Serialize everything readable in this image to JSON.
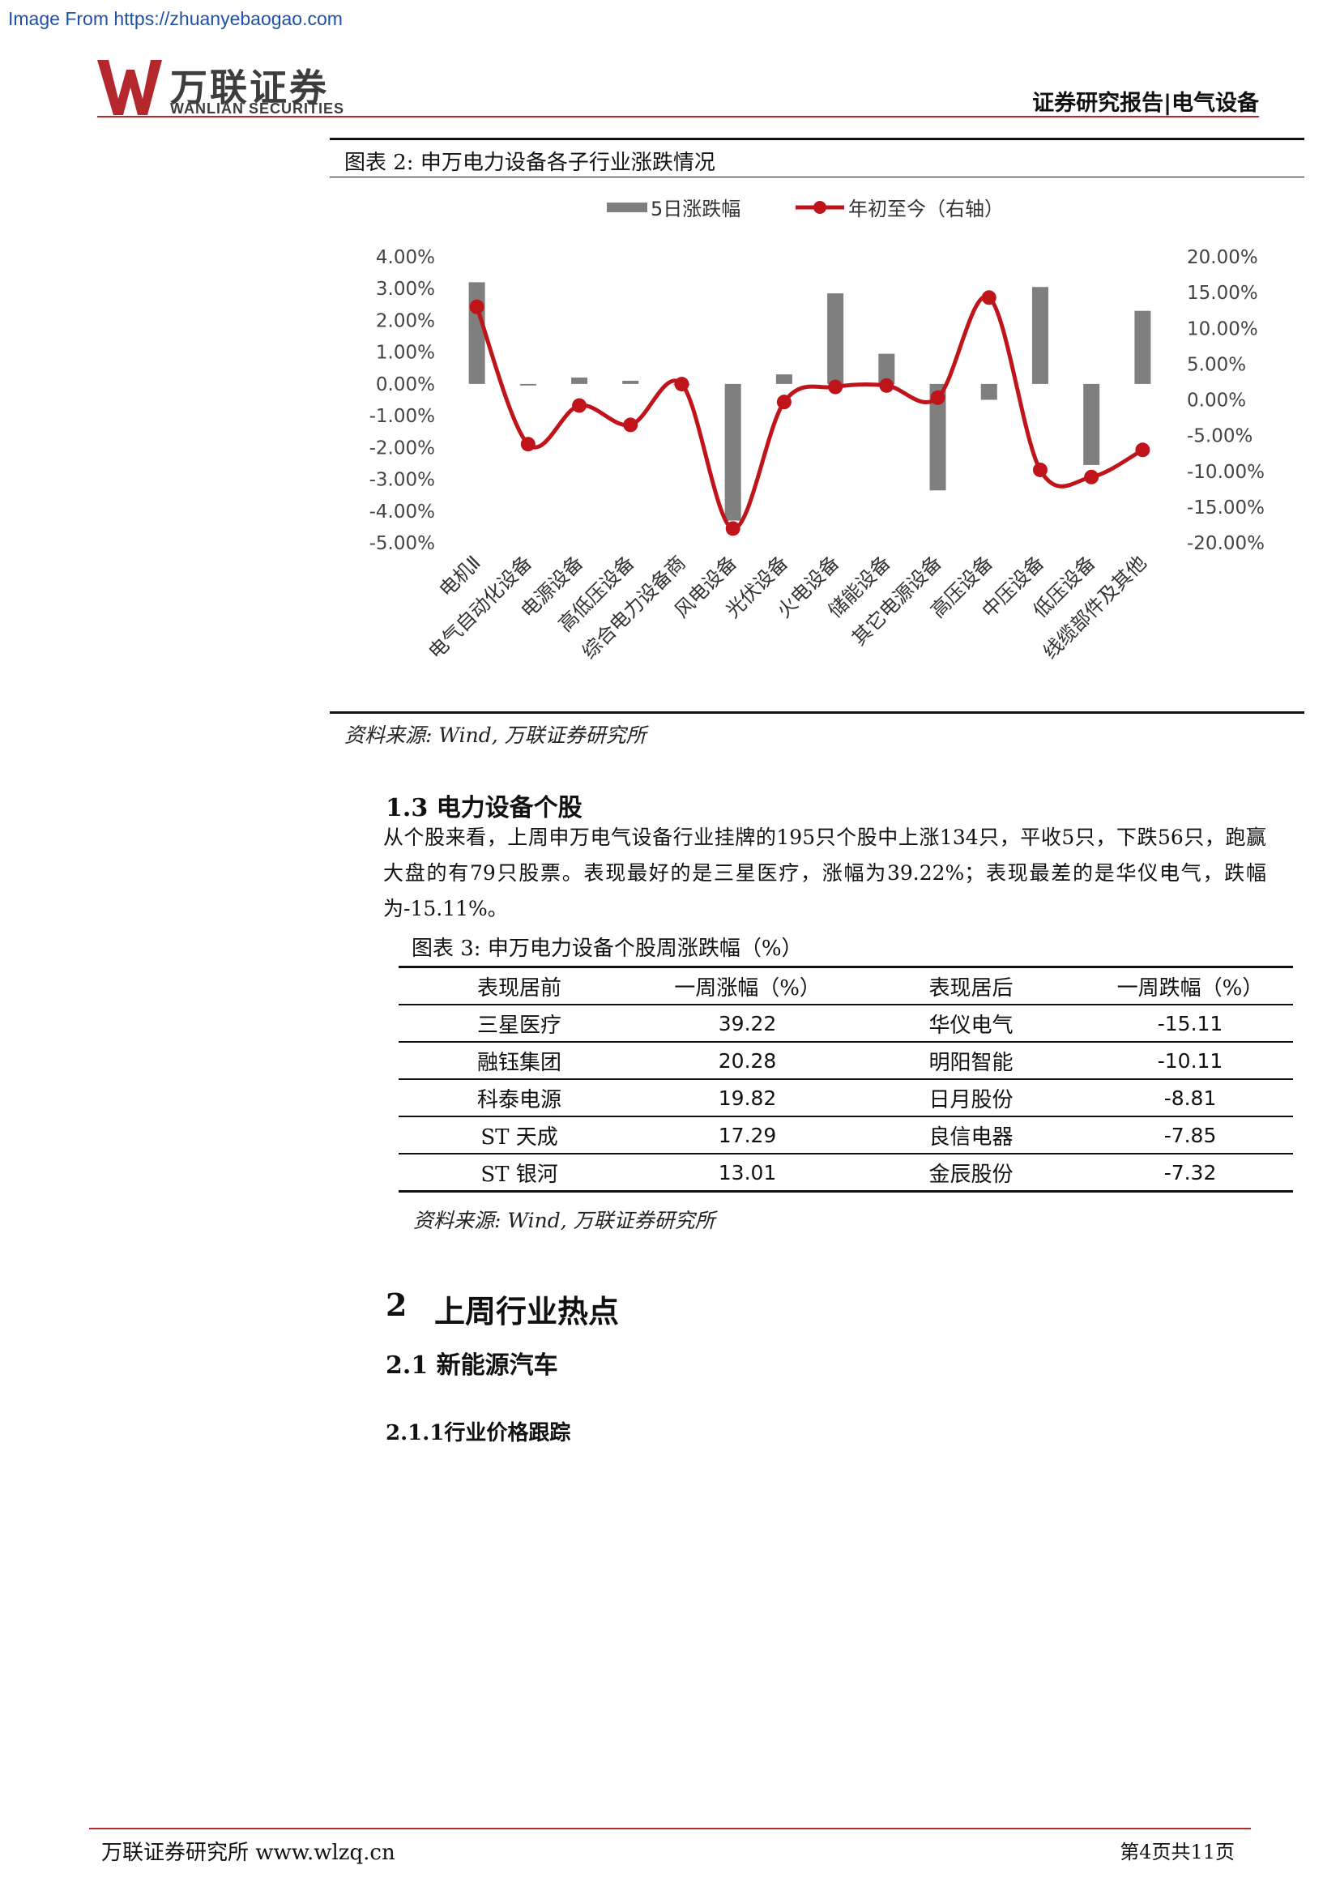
{
  "source_url": "Image From https://zhuanyebaogao.com",
  "header": {
    "logo_cn": "万联证券",
    "logo_en": "WANLIAN SECURITIES",
    "report_type": "证券研究报告|电气设备",
    "brand_color": "#b3272d"
  },
  "figure2": {
    "title": "图表 2:  申万电力设备各子行业涨跌情况",
    "source": "资料来源: Wind, 万联证券研究所"
  },
  "chart_data": {
    "type": "bar",
    "categories": [
      "电机Ⅱ",
      "电气自动化设备",
      "电源设备",
      "高低压设备",
      "综合电力设备商",
      "风电设备",
      "光伏设备",
      "火电设备",
      "储能设备",
      "其它电源设备",
      "高压设备",
      "中压设备",
      "低压设备",
      "线缆部件及其他"
    ],
    "series": [
      {
        "name": "5日涨跌幅",
        "type": "bar",
        "axis": "left",
        "color": "#7f7f7f",
        "values": [
          3.2,
          -0.05,
          0.2,
          0.1,
          0.0,
          -4.3,
          0.3,
          2.85,
          0.95,
          -3.35,
          -0.5,
          3.05,
          -2.55,
          2.3
        ]
      },
      {
        "name": "年初至今（右轴）",
        "type": "line",
        "axis": "right",
        "color": "#c0141b",
        "values": [
          13.0,
          -6.2,
          -0.8,
          -3.5,
          2.2,
          -18.0,
          -0.3,
          1.8,
          2.0,
          0.3,
          14.3,
          -9.8,
          -10.8,
          -7.0
        ]
      }
    ],
    "y_left": {
      "min": -5,
      "max": 4,
      "step": 1,
      "tick_labels": [
        "4.00%",
        "3.00%",
        "2.00%",
        "1.00%",
        "0.00%",
        "-1.00%",
        "-2.00%",
        "-3.00%",
        "-4.00%",
        "-5.00%"
      ]
    },
    "y_right": {
      "min": -20,
      "max": 20,
      "step": 5,
      "tick_labels": [
        "20.00%",
        "15.00%",
        "10.00%",
        "5.00%",
        "0.00%",
        "-5.00%",
        "-10.00%",
        "-15.00%",
        "-20.00%"
      ]
    },
    "legend_position": "top",
    "grid": false
  },
  "section_1_3": {
    "heading": "1.3 电力设备个股",
    "paragraph": "从个股来看，上周申万电气设备行业挂牌的195只个股中上涨134只，平收5只，下跌56只，跑赢大盘的有79只股票。表现最好的是三星医疗，涨幅为39.22%；表现最差的是华仪电气，跌幅为-15.11%。"
  },
  "table3": {
    "title": "图表 3:  申万电力设备个股周涨跌幅（%）",
    "headers": [
      "表现居前",
      "一周涨幅（%）",
      "表现居后",
      "一周跌幅（%）"
    ],
    "rows": [
      [
        "三星医疗",
        "39.22",
        "华仪电气",
        "-15.11"
      ],
      [
        "融钰集团",
        "20.28",
        "明阳智能",
        "-10.11"
      ],
      [
        "科泰电源",
        "19.82",
        "日月股份",
        "-8.81"
      ],
      [
        "ST 天成",
        "17.29",
        "良信电器",
        "-7.85"
      ],
      [
        "ST 银河",
        "13.01",
        "金辰股份",
        "-7.32"
      ]
    ],
    "source": "资料来源: Wind, 万联证券研究所"
  },
  "section_2": {
    "heading_num": "2",
    "heading_text": "上周行业热点",
    "sub_heading": "2.1 新能源汽车",
    "sub_sub_heading": "2.1.1行业价格跟踪"
  },
  "footer": {
    "left": "万联证券研究所  www.wlzq.cn",
    "right": "第4页共11页"
  }
}
